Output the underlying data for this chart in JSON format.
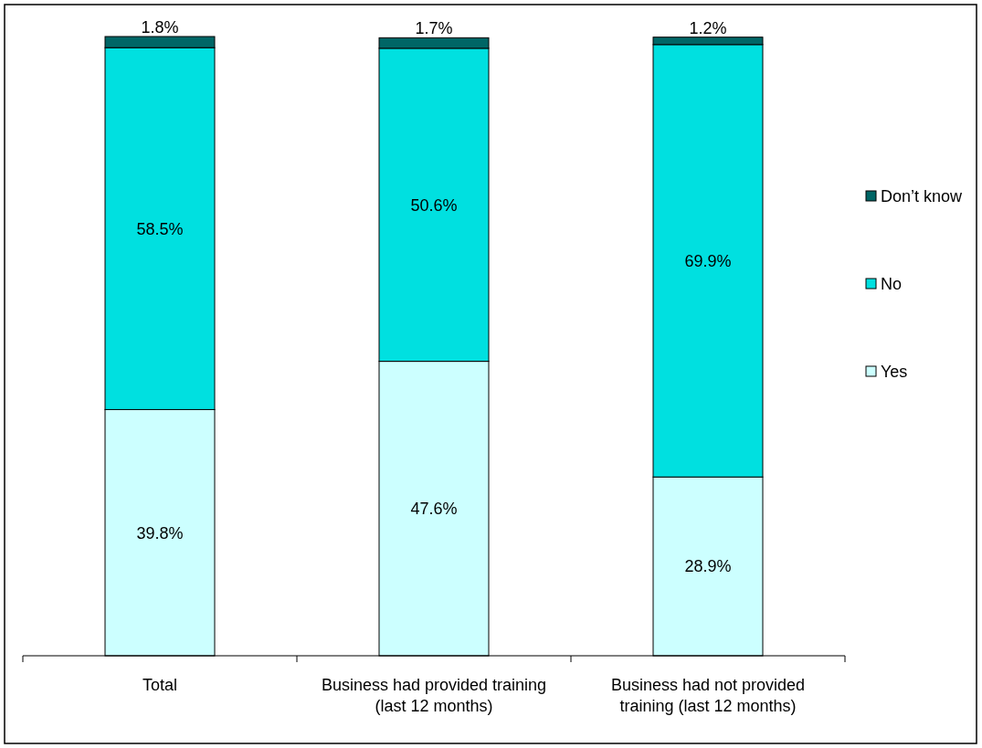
{
  "chart_data": {
    "type": "bar",
    "stacked": true,
    "legend": "right",
    "categories": [
      "Total",
      "Business had provided training (last 12 months)",
      "Business had not provided training (last 12 months)"
    ],
    "series": [
      {
        "name": "Yes",
        "color": "#ccffff",
        "values": [
          39.8,
          47.6,
          28.9
        ],
        "value_labels": [
          "39.8%",
          "47.6%",
          "28.9%"
        ]
      },
      {
        "name": "No",
        "color": "#00e0e0",
        "values": [
          58.5,
          50.6,
          69.9
        ],
        "value_labels": [
          "58.5%",
          "50.6%",
          "69.9%"
        ]
      },
      {
        "name": "Don’t know",
        "color": "#006666",
        "values": [
          1.8,
          1.7,
          1.2
        ],
        "value_labels": [
          "1.8%",
          "1.7%",
          "1.2%"
        ]
      }
    ]
  }
}
